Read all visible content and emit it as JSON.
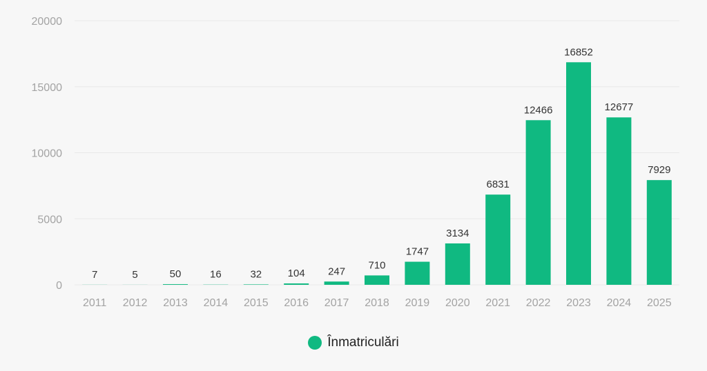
{
  "chart_data": {
    "type": "bar",
    "categories": [
      "2011",
      "2012",
      "2013",
      "2014",
      "2015",
      "2016",
      "2017",
      "2018",
      "2019",
      "2020",
      "2021",
      "2022",
      "2023",
      "2024",
      "2025"
    ],
    "series": [
      {
        "name": "Înmatriculări",
        "values": [
          7,
          5,
          50,
          16,
          32,
          104,
          247,
          710,
          1747,
          3134,
          6831,
          12466,
          16852,
          12677,
          7929
        ]
      }
    ],
    "data_labels": [
      "7",
      "5",
      "50",
      "16",
      "32",
      "104",
      "247",
      "710",
      "1747",
      "3134",
      "6831",
      "12466",
      "16852",
      "12677",
      "7929"
    ],
    "y_ticks": [
      "0",
      "5000",
      "10000",
      "15000",
      "20000"
    ],
    "ylim": [
      0,
      20000
    ],
    "grid": true,
    "legend_position": "bottom-center",
    "colors": {
      "bar": "#10b981",
      "grid": "#e8e8e8",
      "tick": "#a3a3a3",
      "label": "#333333",
      "background": "#f7f7f7"
    }
  }
}
